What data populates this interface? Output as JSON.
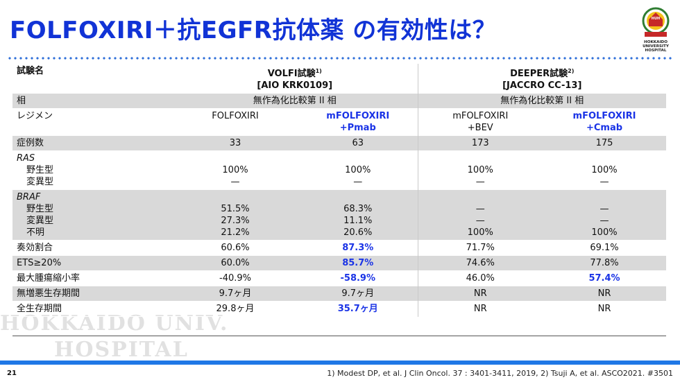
{
  "title": "FOLFOXIRI＋抗EGFR抗体薬 の有効性は？",
  "logo": {
    "badge": "HUH",
    "lines": [
      "HOKKAIDO",
      "UNIVERSITY",
      "HOSPITAL"
    ],
    "icon": "hokkaido-university-hospital-emblem"
  },
  "table": {
    "header": {
      "label": "試験名",
      "volfi_name": "VOLFI試験",
      "volfi_ref": "1)",
      "volfi_id": "[AIO KRK0109]",
      "deeper_name": "DEEPER試験",
      "deeper_ref": "2)",
      "deeper_id": "[JACCRO CC-13]"
    },
    "phase": {
      "label": "相",
      "volfi": "無作為化比較第 II 相",
      "deeper": "無作為化比較第 II 相"
    },
    "regimen": {
      "label": "レジメン",
      "c1": "FOLFOXIRI",
      "c2_line1": "mFOLFOXIRI",
      "c2_line2": "+Pmab",
      "c3_line1": "mFOLFOXIRI",
      "c3_line2": "+BEV",
      "c4_line1": "mFOLFOXIRI",
      "c4_line2": "+Cmab"
    },
    "n": {
      "label": "症例数",
      "c1": "33",
      "c2": "63",
      "c3": "173",
      "c4": "175"
    },
    "ras": {
      "label": "RAS",
      "wild_label": "野生型",
      "mut_label": "変異型",
      "c1_wild": "100%",
      "c1_mut": "—",
      "c2_wild": "100%",
      "c2_mut": "—",
      "c3_wild": "100%",
      "c3_mut": "—",
      "c4_wild": "100%",
      "c4_mut": "—"
    },
    "braf": {
      "label": "BRAF",
      "wild_label": "野生型",
      "mut_label": "変異型",
      "unk_label": "不明",
      "c1": [
        "51.5%",
        "27.3%",
        "21.2%"
      ],
      "c2": [
        "68.3%",
        "11.1%",
        "20.6%"
      ],
      "c3": [
        "—",
        "—",
        "100%"
      ],
      "c4": [
        "—",
        "—",
        "100%"
      ]
    },
    "orr": {
      "label": "奏効割合",
      "c1": "60.6%",
      "c2": "87.3%",
      "c3": "71.7%",
      "c4": "69.1%"
    },
    "ets": {
      "label": "ETS≥20%",
      "c1": "60.0%",
      "c2": "85.7%",
      "c3": "74.6%",
      "c4": "77.8%"
    },
    "dpr": {
      "label": "最大腫瘍縮小率",
      "c1": "-40.9%",
      "c2": "-58.9%",
      "c3": "46.0%",
      "c4": "57.4%"
    },
    "pfs": {
      "label": "無増悪生存期間",
      "c1": "9.7ヶ月",
      "c2": "9.7ヶ月",
      "c3": "NR",
      "c4": "NR"
    },
    "os": {
      "label": "全生存期間",
      "c1": "29.8ヶ月",
      "c2": "35.7ヶ月",
      "c3": "NR",
      "c4": "NR"
    }
  },
  "watermark": {
    "line1": "HOKKAIDO UNIV.",
    "line2": "HOSPITAL"
  },
  "footer": {
    "page": "21",
    "refs": "1) Modest DP, et al. J Clin Oncol. 37 : 3401-3411, 2019, 2) Tsuji A, et al. ASCO2021. #3501"
  },
  "colors": {
    "title": "#1133d6",
    "highlight": "#1a33e6",
    "accent_bar": "#1f78e6",
    "row_shade": "#d9d9d9"
  }
}
